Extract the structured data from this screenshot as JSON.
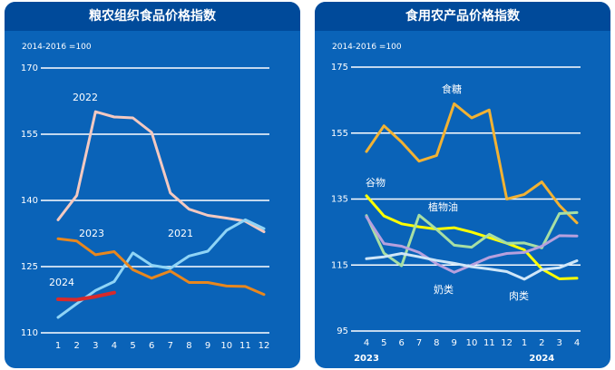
{
  "colors": {
    "panel_bg": "#0a63b8",
    "header_bg": "#004a9a",
    "grid": "#ffffff",
    "text": "#ffffff"
  },
  "chart_data": [
    {
      "type": "line",
      "title": "粮农组织食品价格指数",
      "note": "2014-2016 =100",
      "x": [
        "1",
        "2",
        "3",
        "4",
        "5",
        "6",
        "7",
        "8",
        "9",
        "10",
        "11",
        "12"
      ],
      "ylim": [
        110,
        170
      ],
      "yticks": [
        110,
        125,
        140,
        155,
        170
      ],
      "grid": "horizontal",
      "series": [
        {
          "name": "2022",
          "color": "#f3c9c1",
          "values": [
            135.6,
            141.1,
            160.1,
            158.9,
            158.7,
            155.4,
            141.7,
            138.0,
            136.6,
            136.0,
            135.3,
            132.9
          ]
        },
        {
          "name": "2021",
          "color": "#8fd4f6",
          "values": [
            113.5,
            116.6,
            119.6,
            121.6,
            128.1,
            125.3,
            124.6,
            127.4,
            128.5,
            133.2,
            135.6,
            133.6
          ]
        },
        {
          "name": "2023",
          "color": "#e8871e",
          "values": [
            131.3,
            130.8,
            127.7,
            128.4,
            124.3,
            122.4,
            124.0,
            121.4,
            121.4,
            120.6,
            120.5,
            118.7
          ]
        },
        {
          "name": "2024",
          "color": "#d92a2a",
          "values": [
            117.6,
            117.5,
            118.2,
            119.1
          ]
        }
      ],
      "labels": [
        {
          "text": "2022",
          "series": 0
        },
        {
          "text": "2023",
          "series": 2
        },
        {
          "text": "2021",
          "series": 1
        },
        {
          "text": "2024",
          "series": 3
        }
      ]
    },
    {
      "type": "line",
      "title": "食用农产品价格指数",
      "note": "2014-2016 =100",
      "x": [
        "4",
        "5",
        "6",
        "7",
        "8",
        "9",
        "10",
        "11",
        "12",
        "1",
        "2",
        "3",
        "4"
      ],
      "x_group_labels": [
        {
          "text": "2023",
          "at": 0
        },
        {
          "text": "2024",
          "at": 10
        }
      ],
      "ylim": [
        95,
        175
      ],
      "yticks": [
        95,
        115,
        135,
        155,
        175
      ],
      "grid": "horizontal",
      "series": [
        {
          "name": "食糖",
          "color": "#f2b233",
          "values": [
            149.4,
            157.2,
            152.3,
            146.5,
            148.2,
            163.9,
            159.6,
            162.0,
            135.0,
            136.4,
            140.2,
            133.1,
            127.8
          ]
        },
        {
          "name": "谷物",
          "color": "#ffff00",
          "values": [
            136.0,
            129.9,
            127.5,
            126.6,
            125.9,
            126.3,
            125.0,
            123.3,
            121.6,
            119.6,
            113.8,
            110.8,
            111.0
          ]
        },
        {
          "name": "植物油",
          "color": "#a7dfa4",
          "values": [
            130.0,
            118.6,
            114.8,
            130.1,
            125.8,
            121.0,
            120.4,
            124.3,
            121.6,
            121.7,
            120.2,
            130.6,
            130.9
          ]
        },
        {
          "name": "奶类",
          "color": "#b7a0de",
          "values": [
            129.6,
            121.5,
            120.7,
            118.8,
            115.4,
            112.8,
            115.0,
            117.3,
            118.5,
            118.8,
            120.7,
            123.9,
            123.8
          ]
        },
        {
          "name": "肉类",
          "color": "#cfe6f8",
          "values": [
            116.9,
            117.5,
            118.5,
            117.5,
            116.4,
            115.5,
            114.5,
            113.8,
            113.0,
            110.7,
            113.6,
            114.2,
            116.3
          ]
        }
      ],
      "labels": [
        {
          "text": "食糖",
          "series": 0
        },
        {
          "text": "谷物",
          "series": 1
        },
        {
          "text": "植物油",
          "series": 2
        },
        {
          "text": "奶类",
          "series": 3
        },
        {
          "text": "肉类",
          "series": 4
        }
      ]
    }
  ]
}
